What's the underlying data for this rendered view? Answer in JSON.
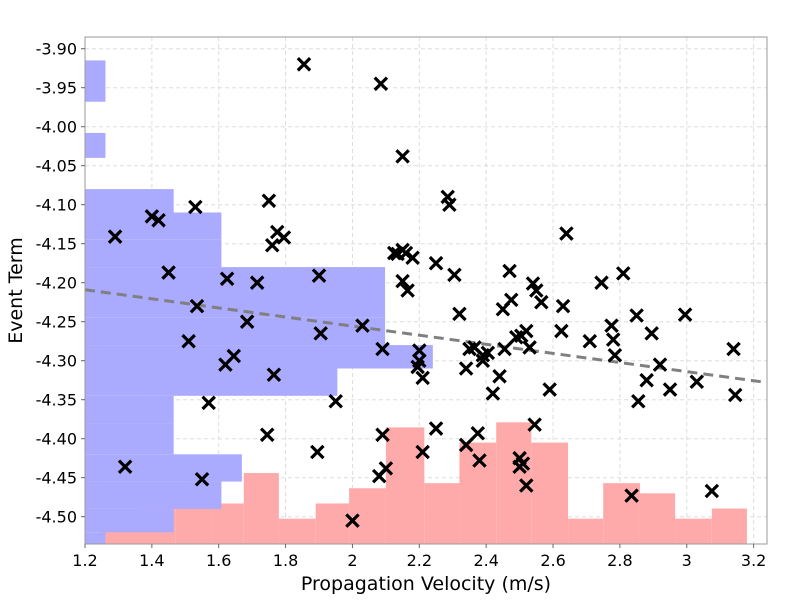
{
  "chart_data": {
    "type": "scatter",
    "title": "",
    "xlabel": "Propagation Velocity (m/s)",
    "ylabel": "Event Term",
    "xlim": [
      1.2,
      3.24
    ],
    "ylim": [
      -4.535,
      -3.885
    ],
    "grid": true,
    "xticks": [
      1.2,
      1.4,
      1.6,
      1.8,
      2,
      2.2,
      2.4,
      2.6,
      2.8,
      3,
      3.2
    ],
    "xtick_labels": [
      "1.2",
      "1.4",
      "1.6",
      "1.8",
      "2",
      "2.2",
      "2.4",
      "2.6",
      "2.8",
      "3",
      "3.2"
    ],
    "yticks": [
      -3.9,
      -3.95,
      -4.0,
      -4.05,
      -4.1,
      -4.15,
      -4.2,
      -4.25,
      -4.3,
      -4.35,
      -4.4,
      -4.45,
      -4.5
    ],
    "ytick_labels": [
      "-3.90",
      "-3.95",
      "-4.00",
      "-4.05",
      "-4.10",
      "-4.15",
      "-4.20",
      "-4.25",
      "-4.30",
      "-4.35",
      "-4.40",
      "-4.45",
      "-4.50"
    ],
    "colors": {
      "points": "#000000",
      "trend": "#808080",
      "y_hist": "#aaaaff",
      "x_hist": "#ffaaaa",
      "grid": "#dddddd"
    },
    "trend_line": {
      "x": [
        1.2,
        3.24
      ],
      "y": [
        -4.209,
        -4.328
      ],
      "style": "dashed"
    },
    "points": {
      "x": [
        1.855,
        2.085,
        2.15,
        1.29,
        1.4,
        1.42,
        1.53,
        1.75,
        1.76,
        1.775,
        1.795,
        1.45,
        1.625,
        1.715,
        1.535,
        1.51,
        1.645,
        1.62,
        1.685,
        1.765,
        1.57,
        1.32,
        1.55,
        1.745,
        1.9,
        1.905,
        1.95,
        2.03,
        2.09,
        2.08,
        2.1,
        2.09,
        2.125,
        2.135,
        2.15,
        2.165,
        2.18,
        2.15,
        2.16,
        2.195,
        2.2,
        2.2,
        2.21,
        2.21,
        2.25,
        2.25,
        2.285,
        2.29,
        2.305,
        2.32,
        2.34,
        2.35,
        2.365,
        2.375,
        2.39,
        2.405,
        2.42,
        2.44,
        2.45,
        2.455,
        2.47,
        2.475,
        2.49,
        2.505,
        2.52,
        2.53,
        2.54,
        2.55,
        2.565,
        2.59,
        2.625,
        2.63,
        2.64,
        2.39,
        2.38,
        2.34,
        2.5,
        2.51,
        2.52,
        2.5,
        2.545,
        2.71,
        2.745,
        2.775,
        2.78,
        2.785,
        2.81,
        2.85,
        2.855,
        2.88,
        2.895,
        2.92,
        2.95,
        2.995,
        3.03,
        3.075,
        3.14,
        3.145,
        2.835,
        1.895,
        2.0
      ],
      "y": [
        -3.92,
        -3.945,
        -4.038,
        -4.141,
        -4.115,
        -4.12,
        -4.103,
        -4.095,
        -4.152,
        -4.135,
        -4.142,
        -4.187,
        -4.195,
        -4.2,
        -4.23,
        -4.275,
        -4.294,
        -4.305,
        -4.25,
        -4.318,
        -4.354,
        -4.436,
        -4.452,
        -4.395,
        -4.191,
        -4.265,
        -4.352,
        -4.255,
        -4.285,
        -4.448,
        -4.438,
        -4.395,
        -4.162,
        -4.163,
        -4.198,
        -4.21,
        -4.168,
        -4.158,
        -4.162,
        -4.308,
        -4.3,
        -4.287,
        -4.322,
        -4.417,
        -4.175,
        -4.387,
        -4.09,
        -4.1,
        -4.19,
        -4.24,
        -4.31,
        -4.285,
        -4.283,
        -4.393,
        -4.3,
        -4.29,
        -4.342,
        -4.32,
        -4.234,
        -4.285,
        -4.185,
        -4.222,
        -4.27,
        -4.268,
        -4.262,
        -4.283,
        -4.201,
        -4.21,
        -4.225,
        -4.337,
        -4.262,
        -4.23,
        -4.137,
        -4.293,
        -4.428,
        -4.408,
        -4.425,
        -4.432,
        -4.46,
        -4.436,
        -4.382,
        -4.275,
        -4.2,
        -4.255,
        -4.273,
        -4.293,
        -4.188,
        -4.242,
        -4.352,
        -4.325,
        -4.265,
        -4.305,
        -4.337,
        -4.241,
        -4.327,
        -4.467,
        -4.285,
        -4.344,
        -4.473,
        -4.417,
        -4.505
      ]
    },
    "y_histogram": {
      "bins": [
        [
          -4.535,
          -4.52
        ],
        [
          -4.52,
          -4.49
        ],
        [
          -4.49,
          -4.455
        ],
        [
          -4.455,
          -4.42
        ],
        [
          -4.42,
          -4.38
        ],
        [
          -4.38,
          -4.345
        ],
        [
          -4.345,
          -4.31
        ],
        [
          -4.31,
          -4.28
        ],
        [
          -4.28,
          -4.245
        ],
        [
          -4.245,
          -4.21
        ],
        [
          -4.21,
          -4.18
        ],
        [
          -4.18,
          -4.145
        ],
        [
          -4.145,
          -4.11
        ],
        [
          -4.11,
          -4.08
        ],
        [
          -4.04,
          -4.008
        ],
        [
          -3.968,
          -3.915
        ]
      ],
      "values": [
        0.03,
        0.13,
        0.2,
        0.23,
        0.13,
        0.13,
        0.37,
        0.51,
        0.44,
        0.44,
        0.44,
        0.2,
        0.2,
        0.13,
        0.03,
        0.03
      ]
    },
    "x_histogram": {
      "bins": [
        [
          1.25,
          1.36
        ],
        [
          1.36,
          1.47
        ],
        [
          1.47,
          1.58
        ],
        [
          1.58,
          1.675
        ],
        [
          1.675,
          1.78
        ],
        [
          1.78,
          1.89
        ],
        [
          1.89,
          1.99
        ],
        [
          1.99,
          2.1
        ],
        [
          2.1,
          2.215
        ],
        [
          2.215,
          2.32
        ],
        [
          2.32,
          2.43
        ],
        [
          2.43,
          2.535
        ],
        [
          2.535,
          2.645
        ],
        [
          2.645,
          2.75
        ],
        [
          2.75,
          2.86
        ],
        [
          2.86,
          2.965
        ],
        [
          2.965,
          3.075
        ],
        [
          3.075,
          3.18
        ]
      ],
      "values": [
        0.05,
        0.08,
        0.08,
        0.08,
        0.14,
        0.05,
        0.08,
        0.11,
        0.23,
        0.12,
        0.2,
        0.24,
        0.2,
        0.05,
        0.12,
        0.1,
        0.05,
        0.07
      ]
    }
  }
}
